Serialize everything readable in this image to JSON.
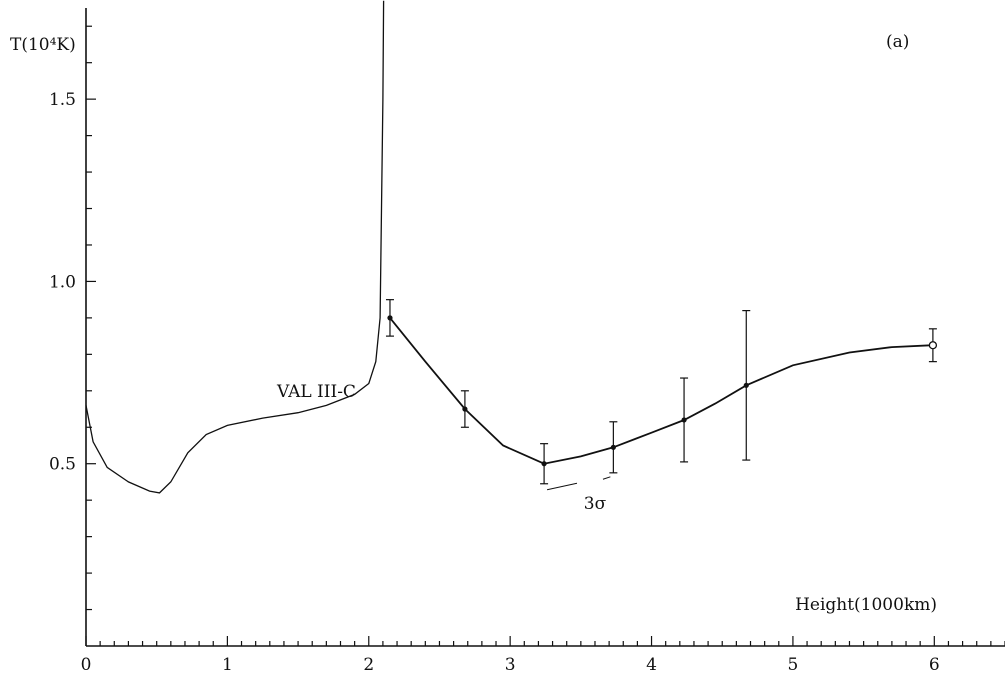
{
  "chart_data": {
    "type": "line",
    "panel_label": "(a)",
    "ylabel": "T(10⁴K)",
    "xlabel": "Height(1000km)",
    "xlim": [
      0,
      6.5
    ],
    "ylim": [
      0,
      1.75
    ],
    "x_ticks": [
      0,
      1,
      2,
      3,
      4,
      5,
      6
    ],
    "x_tick_labels": [
      "0",
      "1",
      "2",
      "3",
      "4",
      "5",
      "6"
    ],
    "y_ticks": [
      0.5,
      1.0,
      1.5
    ],
    "y_tick_labels": [
      "0.5",
      "1.0",
      "1.5"
    ],
    "grid": false,
    "series": [
      {
        "name": "VAL III-C",
        "style": "solid-thin",
        "x": [
          0.0,
          0.05,
          0.15,
          0.3,
          0.45,
          0.52,
          0.6,
          0.72,
          0.85,
          1.0,
          1.25,
          1.5,
          1.7,
          1.9,
          2.0,
          2.05,
          2.08,
          2.09,
          2.1,
          2.105
        ],
        "y": [
          0.66,
          0.56,
          0.49,
          0.45,
          0.425,
          0.42,
          0.45,
          0.53,
          0.58,
          0.605,
          0.625,
          0.64,
          0.66,
          0.69,
          0.72,
          0.78,
          0.9,
          1.2,
          1.5,
          1.78
        ]
      },
      {
        "name": "",
        "style": "solid-with-markers",
        "points": [
          {
            "x": 2.15,
            "y": 0.9,
            "err": 0.05,
            "marker": "filled"
          },
          {
            "x": 2.68,
            "y": 0.65,
            "err": 0.05,
            "marker": "filled"
          },
          {
            "x": 3.24,
            "y": 0.5,
            "err": 0.055,
            "marker": "filled"
          },
          {
            "x": 3.73,
            "y": 0.545,
            "err": 0.07,
            "marker": "filled"
          },
          {
            "x": 4.23,
            "y": 0.62,
            "err": 0.115,
            "marker": "filled"
          },
          {
            "x": 4.67,
            "y": 0.715,
            "err": 0.205,
            "marker": "filled"
          },
          {
            "x": 5.99,
            "y": 0.825,
            "err": 0.045,
            "marker": "open"
          }
        ],
        "curve_x": [
          2.15,
          2.4,
          2.68,
          2.95,
          3.24,
          3.5,
          3.73,
          4.0,
          4.23,
          4.45,
          4.67,
          5.0,
          5.4,
          5.7,
          5.99
        ],
        "curve_y": [
          0.9,
          0.78,
          0.65,
          0.55,
          0.5,
          0.52,
          0.545,
          0.585,
          0.62,
          0.665,
          0.715,
          0.77,
          0.805,
          0.82,
          0.825
        ]
      }
    ],
    "annotations": [
      {
        "text": "VAL III-C",
        "x": 1.63,
        "y": 0.7
      },
      {
        "text": "3σ",
        "x": 3.6,
        "y": 0.43
      }
    ]
  }
}
